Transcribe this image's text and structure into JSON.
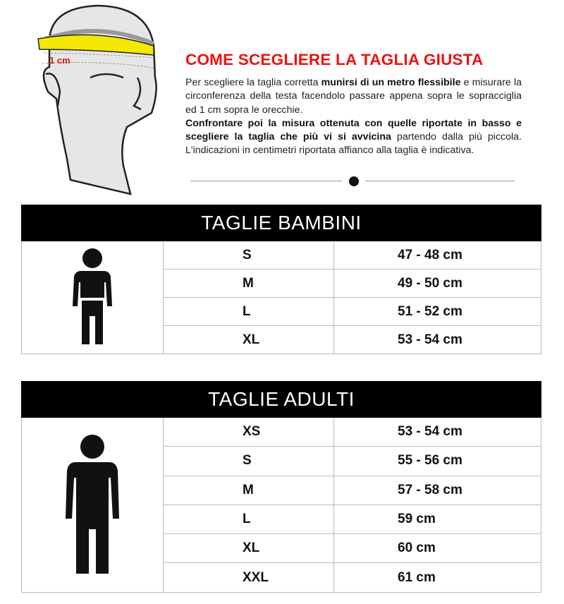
{
  "illustration": {
    "label": "1 cm",
    "tape_color": "#f5e800",
    "label_color": "#e41111"
  },
  "title": "COME SCEGLIERE LA TAGLIA GIUSTA",
  "intro": {
    "p1_a": "Per scegliere la taglia corretta ",
    "p1_b": "munirsi di un metro flessibile",
    "p1_c": " e misurare la circonferenza della testa facendolo passare appena sopra le sopracciglia ed 1 cm sopra le orecchie.",
    "p2_a": "Confrontare poi la misura ottenuta con quelle riportate in basso e scegliere la taglia che più vi si avvicina",
    "p2_b": " partendo dalla più piccola. L'indicazioni in centimetri riportata affianco alla taglia è indicativa."
  },
  "colors": {
    "accent": "#ee1111",
    "header_bg": "#000000"
  },
  "kids": {
    "title": "TAGLIE BAMBINI",
    "icon": "child-figure-icon",
    "rows": [
      {
        "size": "S",
        "cm": "47 - 48 cm"
      },
      {
        "size": "M",
        "cm": "49 - 50 cm"
      },
      {
        "size": "L",
        "cm": "51 - 52 cm"
      },
      {
        "size": "XL",
        "cm": "53 - 54 cm"
      }
    ]
  },
  "adults": {
    "title": "TAGLIE ADULTI",
    "icon": "adult-figure-icon",
    "rows": [
      {
        "size": "XS",
        "cm": "53 - 54 cm"
      },
      {
        "size": "S",
        "cm": "55 - 56 cm"
      },
      {
        "size": "M",
        "cm": "57 - 58 cm"
      },
      {
        "size": "L",
        "cm": "59 cm"
      },
      {
        "size": "XL",
        "cm": "60 cm"
      },
      {
        "size": "XXL",
        "cm": "61 cm"
      }
    ]
  }
}
